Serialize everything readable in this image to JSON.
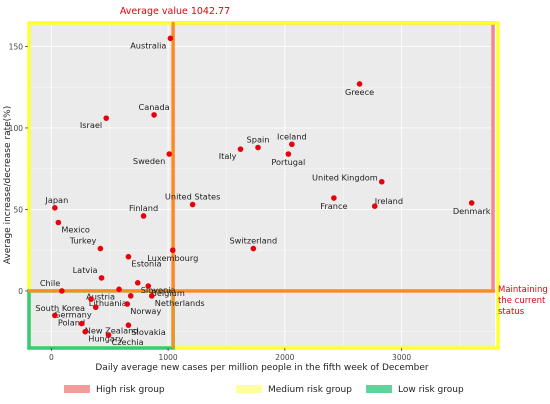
{
  "chart_data": {
    "type": "scatter",
    "title": "",
    "xlabel": "Daily average new cases per million people in the fifth week of December",
    "ylabel": "Average increase/decrease rate(%)",
    "xlim": [
      -200,
      3800
    ],
    "ylim": [
      -35,
      165
    ],
    "x_ticks": [
      0,
      1000,
      2000,
      3000
    ],
    "y_ticks": [
      0,
      50,
      100,
      150
    ],
    "grid": true,
    "marker_color": "#e8000b",
    "points": [
      {
        "label": "Australia",
        "x": 1020,
        "y": 155
      },
      {
        "label": "Greece",
        "x": 2640,
        "y": 127
      },
      {
        "label": "Canada",
        "x": 880,
        "y": 108
      },
      {
        "label": "Israel",
        "x": 470,
        "y": 106
      },
      {
        "label": "Sweden",
        "x": 1010,
        "y": 84
      },
      {
        "label": "Spain",
        "x": 1770,
        "y": 88
      },
      {
        "label": "Iceland",
        "x": 2060,
        "y": 90
      },
      {
        "label": "Italy",
        "x": 1620,
        "y": 87
      },
      {
        "label": "Portugal",
        "x": 2030,
        "y": 84
      },
      {
        "label": "United Kingdom",
        "x": 2830,
        "y": 67
      },
      {
        "label": "United States",
        "x": 1210,
        "y": 53
      },
      {
        "label": "France",
        "x": 2420,
        "y": 57
      },
      {
        "label": "Ireland",
        "x": 2770,
        "y": 52
      },
      {
        "label": "Denmark",
        "x": 3600,
        "y": 54
      },
      {
        "label": "Japan",
        "x": 30,
        "y": 51
      },
      {
        "label": "Finland",
        "x": 790,
        "y": 46
      },
      {
        "label": "Mexico",
        "x": 60,
        "y": 42
      },
      {
        "label": "Turkey",
        "x": 420,
        "y": 26
      },
      {
        "label": "Luxembourg",
        "x": 1040,
        "y": 25
      },
      {
        "label": "Switzerland",
        "x": 1730,
        "y": 26
      },
      {
        "label": "Estonia",
        "x": 660,
        "y": 21
      },
      {
        "label": "Latvia",
        "x": 430,
        "y": 8
      },
      {
        "label": "Slovenia",
        "x": 740,
        "y": 5
      },
      {
        "label": "Belgium",
        "x": 830,
        "y": 3
      },
      {
        "label": "Chile",
        "x": 90,
        "y": 0
      },
      {
        "label": "Austria",
        "x": 580,
        "y": 1
      },
      {
        "label": "Lithuania",
        "x": 680,
        "y": -3
      },
      {
        "label": "Netherlands",
        "x": 860,
        "y": -3
      },
      {
        "label": "South Korea",
        "x": 340,
        "y": -5
      },
      {
        "label": "Germany",
        "x": 380,
        "y": -10
      },
      {
        "label": "Norway",
        "x": 650,
        "y": -8
      },
      {
        "label": "Poland",
        "x": 30,
        "y": -15
      },
      {
        "label": "Slovakia",
        "x": 660,
        "y": -21
      },
      {
        "label": "New Zealand",
        "x": 260,
        "y": -20
      },
      {
        "label": "Hungary",
        "x": 290,
        "y": -25
      },
      {
        "label": "Czechia",
        "x": 490,
        "y": -27
      }
    ],
    "annotations": {
      "average_label": "Average value 1042.77",
      "average_x": 1042.77,
      "maintain_label": [
        "Maintaining",
        "the current",
        "status"
      ]
    },
    "legend": [
      {
        "name": "High risk group",
        "color": "#f28a8a"
      },
      {
        "name": "Medium risk group",
        "color": "#ffffa0"
      },
      {
        "name": "Low risk group",
        "color": "#5fd39a"
      }
    ],
    "legend_position": "bottom",
    "colors": {
      "panel_bg": "#ebebeb",
      "grid": "#ffffff",
      "high_box": "#f28a8a",
      "medium_box": "#ffff33",
      "low_box": "#33cc77",
      "orange_line": "#ff8c1a",
      "annotation_text": "#e8000b"
    }
  }
}
